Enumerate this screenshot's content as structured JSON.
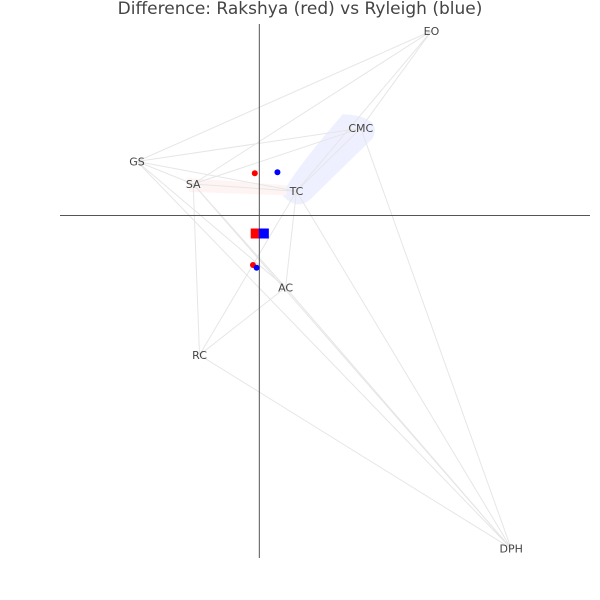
{
  "chart_data": {
    "type": "scatter",
    "title": "Difference: Rakshya (red) vs Ryleigh (blue)",
    "xlim": [
      -2.2,
      3.65
    ],
    "ylim": [
      -3.75,
      2.15
    ],
    "grid": false,
    "legend": "none",
    "colors": {
      "red": "#ff0000",
      "blue": "#0000ff",
      "edge": "#e6e6e6",
      "axis": "#555555",
      "blob": "#eef0ff"
    },
    "nodes": [
      {
        "label": "EO",
        "x": 1.9,
        "y": 2.05
      },
      {
        "label": "CMC",
        "x": 1.12,
        "y": 0.97
      },
      {
        "label": "GS",
        "x": -1.35,
        "y": 0.6
      },
      {
        "label": "SA",
        "x": -0.73,
        "y": 0.35
      },
      {
        "label": "TC",
        "x": 0.41,
        "y": 0.27
      },
      {
        "label": "AC",
        "x": 0.29,
        "y": -0.8
      },
      {
        "label": "RC",
        "x": -0.66,
        "y": -1.55
      },
      {
        "label": "DPH",
        "x": 2.78,
        "y": -3.7
      }
    ],
    "edges": [
      [
        "EO",
        "CMC"
      ],
      [
        "EO",
        "GS"
      ],
      [
        "EO",
        "TC"
      ],
      [
        "EO",
        "SA"
      ],
      [
        "CMC",
        "GS"
      ],
      [
        "CMC",
        "SA"
      ],
      [
        "CMC",
        "TC"
      ],
      [
        "CMC",
        "DPH"
      ],
      [
        "GS",
        "SA"
      ],
      [
        "GS",
        "TC"
      ],
      [
        "GS",
        "AC"
      ],
      [
        "GS",
        "DPH"
      ],
      [
        "SA",
        "TC"
      ],
      [
        "SA",
        "RC"
      ],
      [
        "SA",
        "AC"
      ],
      [
        "SA",
        "DPH"
      ],
      [
        "TC",
        "AC"
      ],
      [
        "TC",
        "RC"
      ],
      [
        "TC",
        "DPH"
      ],
      [
        "AC",
        "RC"
      ],
      [
        "AC",
        "DPH"
      ],
      [
        "RC",
        "DPH"
      ]
    ],
    "series": [
      {
        "color": "red",
        "points": [
          {
            "x": -0.05,
            "y": 0.47
          },
          {
            "x": -0.07,
            "y": -0.55
          }
        ],
        "square": {
          "x": -0.04,
          "y": -0.2
        }
      },
      {
        "color": "blue",
        "points": [
          {
            "x": 0.2,
            "y": 0.48
          },
          {
            "x": -0.03,
            "y": -0.58
          }
        ],
        "square": {
          "x": 0.05,
          "y": -0.2
        }
      }
    ]
  }
}
